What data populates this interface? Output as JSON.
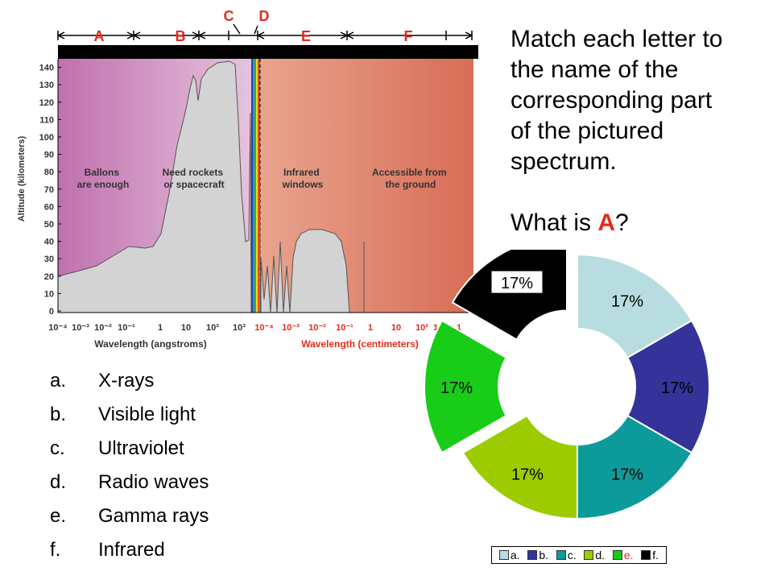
{
  "spectrum": {
    "region_labels": [
      "A",
      "B",
      "C",
      "D",
      "E",
      "F"
    ],
    "y_axis_title": "Altitude (kilometers)",
    "y_ticks": [
      "0",
      "10",
      "20",
      "30",
      "40",
      "50",
      "60",
      "70",
      "80",
      "90",
      "100",
      "110",
      "120",
      "130",
      "140"
    ],
    "x_ticks_angstroms": [
      "10⁻⁴",
      "10⁻³",
      "10⁻²",
      "10⁻¹",
      "1",
      "10",
      "10²",
      "10³"
    ],
    "x_ticks_centimeters": [
      "10⁻⁴",
      "10⁻³",
      "10⁻²",
      "10⁻¹",
      "1",
      "10",
      "10²",
      "10³",
      "1"
    ],
    "x_label_angstroms": "Wavelength (angstroms)",
    "x_label_centimeters": "Wavelength (centimeters)",
    "zone_labels": [
      [
        "Ballons",
        "are enough"
      ],
      [
        "Need rockets",
        "or spacecraft"
      ],
      [
        "Infrared",
        "windows"
      ],
      [
        "Accessible from",
        "the ground"
      ]
    ]
  },
  "question": {
    "lines": [
      "Match each letter to",
      "the name of the",
      "corresponding part",
      "of the pictured",
      "spectrum."
    ],
    "prompt_prefix": "What is ",
    "prompt_letter": "A",
    "prompt_suffix": "?"
  },
  "answers": [
    {
      "letter": "a.",
      "text": "X-rays"
    },
    {
      "letter": "b.",
      "text": "Visible light"
    },
    {
      "letter": "c.",
      "text": "Ultraviolet"
    },
    {
      "letter": "d.",
      "text": "Radio waves"
    },
    {
      "letter": "e.",
      "text": "Gamma rays"
    },
    {
      "letter": "f.",
      "text": "Infrared"
    }
  ],
  "chart_data": {
    "type": "pie",
    "categories": [
      "a.",
      "b.",
      "c.",
      "d.",
      "e.",
      "f."
    ],
    "values": [
      17,
      17,
      17,
      17,
      17,
      17
    ],
    "labels": [
      "17%",
      "17%",
      "17%",
      "17%",
      "17%",
      "17%"
    ],
    "colors": [
      "#b8dde0",
      "#33339a",
      "#0d9a9a",
      "#9ccc00",
      "#18cc18",
      "#000000"
    ],
    "exploded": [
      "e.",
      "f."
    ],
    "legend_position": "bottom"
  }
}
